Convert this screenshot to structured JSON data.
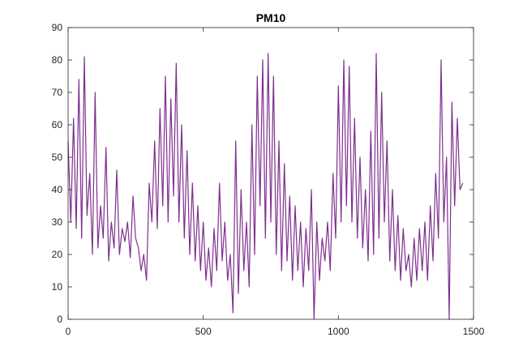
{
  "chart_data": {
    "type": "line",
    "title": "PM10",
    "xlabel": "",
    "ylabel": "",
    "xlim": [
      0,
      1500
    ],
    "ylim": [
      0,
      90
    ],
    "xticks": [
      0,
      500,
      1000,
      1500
    ],
    "yticks": [
      0,
      10,
      20,
      30,
      40,
      50,
      60,
      70,
      80,
      90
    ],
    "grid": false,
    "line_color": "#7E2F8E",
    "series": [
      {
        "x": [
          0,
          10,
          20,
          30,
          40,
          50,
          60,
          70,
          80,
          90,
          100,
          110,
          120,
          130,
          140,
          150,
          160,
          170,
          180,
          190,
          200,
          210,
          220,
          230,
          240,
          250,
          260,
          270,
          280,
          290,
          300,
          310,
          320,
          330,
          340,
          350,
          360,
          370,
          380,
          390,
          400,
          410,
          420,
          430,
          440,
          450,
          460,
          470,
          480,
          490,
          500,
          510,
          520,
          530,
          540,
          550,
          560,
          570,
          580,
          590,
          600,
          610,
          620,
          630,
          640,
          650,
          660,
          670,
          680,
          690,
          700,
          710,
          720,
          730,
          740,
          750,
          760,
          770,
          780,
          790,
          800,
          810,
          820,
          830,
          840,
          850,
          860,
          870,
          880,
          890,
          900,
          910,
          920,
          930,
          940,
          950,
          960,
          970,
          980,
          990,
          1000,
          1010,
          1020,
          1030,
          1040,
          1050,
          1060,
          1070,
          1080,
          1090,
          1100,
          1110,
          1120,
          1130,
          1140,
          1150,
          1160,
          1170,
          1180,
          1190,
          1200,
          1210,
          1220,
          1230,
          1240,
          1250,
          1260,
          1270,
          1280,
          1290,
          1300,
          1310,
          1320,
          1330,
          1340,
          1350,
          1360,
          1370,
          1380,
          1390,
          1400,
          1410,
          1420,
          1430,
          1440,
          1450,
          1460
        ],
        "values": [
          55,
          30,
          62,
          28,
          74,
          25,
          81,
          32,
          45,
          20,
          70,
          22,
          35,
          25,
          53,
          18,
          30,
          22,
          46,
          20,
          28,
          24,
          30,
          19,
          38,
          25,
          22,
          15,
          20,
          12,
          42,
          30,
          55,
          28,
          65,
          35,
          75,
          30,
          68,
          38,
          79,
          30,
          60,
          25,
          52,
          20,
          42,
          18,
          35,
          15,
          30,
          12,
          22,
          10,
          28,
          15,
          42,
          18,
          30,
          12,
          20,
          2,
          55,
          8,
          40,
          15,
          30,
          10,
          60,
          20,
          75,
          35,
          80,
          25,
          82,
          30,
          75,
          20,
          55,
          15,
          48,
          18,
          38,
          12,
          35,
          15,
          30,
          10,
          28,
          15,
          40,
          0,
          30,
          12,
          25,
          18,
          30,
          15,
          45,
          25,
          72,
          30,
          80,
          35,
          78,
          30,
          62,
          25,
          50,
          22,
          40,
          18,
          58,
          20,
          82,
          25,
          70,
          30,
          55,
          18,
          40,
          15,
          32,
          12,
          28,
          15,
          20,
          10,
          25,
          12,
          28,
          15,
          30,
          12,
          35,
          18,
          45,
          25,
          80,
          30,
          50,
          0,
          67,
          35,
          62,
          40,
          42
        ]
      }
    ]
  }
}
